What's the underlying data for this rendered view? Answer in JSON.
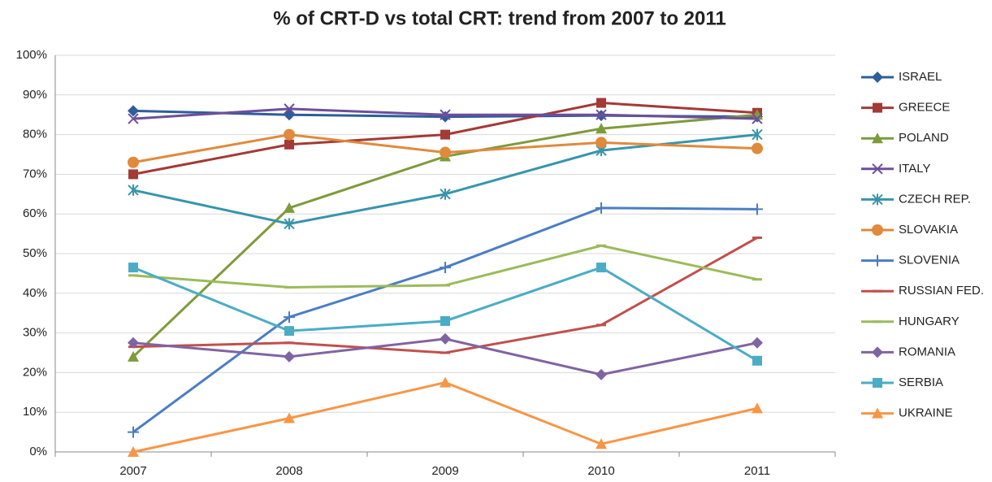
{
  "chart_data": {
    "type": "line",
    "title": "% of CRT-D vs total CRT: trend from 2007 to 2011",
    "categories": [
      "2007",
      "2008",
      "2009",
      "2010",
      "2011"
    ],
    "ylim": [
      0,
      100
    ],
    "yticks": [
      {
        "value": 0,
        "label": "0%"
      },
      {
        "value": 10,
        "label": "10%"
      },
      {
        "value": 20,
        "label": "20%"
      },
      {
        "value": 30,
        "label": "30%"
      },
      {
        "value": 40,
        "label": "40%"
      },
      {
        "value": 50,
        "label": "50%"
      },
      {
        "value": 60,
        "label": "60%"
      },
      {
        "value": 70,
        "label": "70%"
      },
      {
        "value": 80,
        "label": "80%"
      },
      {
        "value": 90,
        "label": "90%"
      },
      {
        "value": 100,
        "label": "100%"
      }
    ],
    "grid": true,
    "legend": "right",
    "series": [
      {
        "name": "ISRAEL",
        "color": "#2e5d9c",
        "marker": "diamond",
        "values": [
          86,
          85,
          84.5,
          84.8,
          84.5
        ]
      },
      {
        "name": "GREECE",
        "color": "#a33a36",
        "marker": "square",
        "values": [
          70,
          77.5,
          80,
          88,
          85.5
        ]
      },
      {
        "name": "POLAND",
        "color": "#7e9b3b",
        "marker": "triangle",
        "values": [
          24,
          61.5,
          74.5,
          81.5,
          85
        ]
      },
      {
        "name": "ITALY",
        "color": "#6d4f9b",
        "marker": "x",
        "values": [
          84,
          86.5,
          85,
          85,
          84
        ]
      },
      {
        "name": "CZECH REP.",
        "color": "#3795ad",
        "marker": "asterisk",
        "values": [
          66,
          57.5,
          65,
          76,
          80
        ]
      },
      {
        "name": "SLOVAKIA",
        "color": "#e08a3c",
        "marker": "circle",
        "values": [
          73,
          80,
          75.5,
          78,
          76.5
        ]
      },
      {
        "name": "SLOVENIA",
        "color": "#4a7ec4",
        "marker": "plus",
        "values": [
          5,
          34,
          46.5,
          61.5,
          61.2
        ]
      },
      {
        "name": "RUSSIAN FED.",
        "color": "#c0504d",
        "marker": "dash",
        "values": [
          26.5,
          27.5,
          25,
          32,
          54
        ]
      },
      {
        "name": "HUNGARY",
        "color": "#9bbb59",
        "marker": "dash",
        "values": [
          44.5,
          41.5,
          42,
          52,
          43.5
        ]
      },
      {
        "name": "ROMANIA",
        "color": "#8064a2",
        "marker": "diamond",
        "values": [
          27.5,
          24,
          28.5,
          19.5,
          27.5
        ]
      },
      {
        "name": "SERBIA",
        "color": "#4bacc6",
        "marker": "square",
        "values": [
          46.5,
          30.5,
          33,
          46.5,
          23
        ]
      },
      {
        "name": "UKRAINE",
        "color": "#f79646",
        "marker": "triangle",
        "values": [
          0,
          8.5,
          17.5,
          2,
          11
        ]
      }
    ]
  }
}
